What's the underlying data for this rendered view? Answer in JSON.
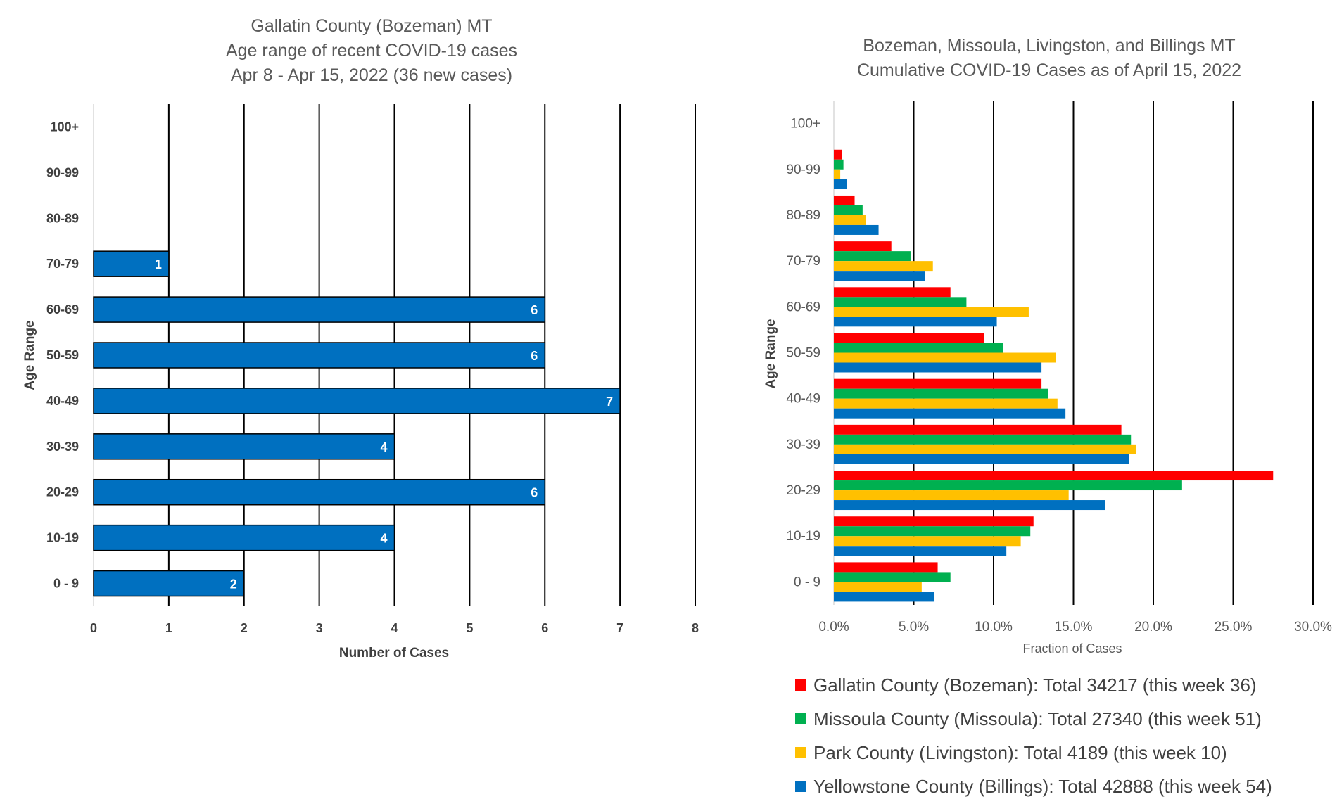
{
  "chart_data": [
    {
      "type": "bar",
      "orientation": "horizontal",
      "title": [
        "Gallatin County (Bozeman) MT",
        "Age range of recent COVID-19 cases",
        "Apr 8 - Apr 15, 2022 (36 new cases)"
      ],
      "xlabel": "Number of Cases",
      "ylabel": "Age Range",
      "categories": [
        "0 - 9",
        "10-19",
        "20-29",
        "30-39",
        "40-49",
        "50-59",
        "60-69",
        "70-79",
        "80-89",
        "90-99",
        "100+"
      ],
      "values": [
        2,
        4,
        6,
        4,
        7,
        6,
        6,
        1,
        0,
        0,
        0
      ],
      "data_labels": [
        "2",
        "4",
        "6",
        "4",
        "7",
        "6",
        "6",
        "1",
        "",
        "",
        ""
      ],
      "xlim": [
        0,
        8
      ],
      "xticks": [
        "0",
        "1",
        "2",
        "3",
        "4",
        "5",
        "6",
        "7",
        "8"
      ],
      "grid": "vertical",
      "bar_color": "#0070C0"
    },
    {
      "type": "bar",
      "orientation": "horizontal",
      "title": [
        "Bozeman, Missoula, Livingston, and Billings MT",
        "Cumulative COVID-19 Cases as of April 15, 2022"
      ],
      "xlabel": "Fraction of Cases",
      "ylabel": "Age Range",
      "categories": [
        "0 - 9",
        "10-19",
        "20-29",
        "30-39",
        "40-49",
        "50-59",
        "60-69",
        "70-79",
        "80-89",
        "90-99",
        "100+"
      ],
      "xlim": [
        0,
        30
      ],
      "xticks": [
        "0.0%",
        "5.0%",
        "10.0%",
        "15.0%",
        "20.0%",
        "25.0%",
        "30.0%"
      ],
      "grid": "vertical",
      "legend_position": "bottom",
      "series": [
        {
          "name": "Gallatin County (Bozeman): Total 34217 (this week 36)",
          "color": "#FF0000",
          "values": [
            6.5,
            12.5,
            27.5,
            18.0,
            13.0,
            9.4,
            7.3,
            3.6,
            1.3,
            0.5,
            0.0
          ]
        },
        {
          "name": "Missoula County (Missoula): Total 27340 (this week 51)",
          "color": "#00B050",
          "values": [
            7.3,
            12.3,
            21.8,
            18.6,
            13.4,
            10.6,
            8.3,
            4.8,
            1.8,
            0.6,
            0.0
          ]
        },
        {
          "name": "Park County (Livingston): Total 4189 (this week 10)",
          "color": "#FFC000",
          "values": [
            5.5,
            11.7,
            14.7,
            18.9,
            14.0,
            13.9,
            12.2,
            6.2,
            2.0,
            0.4,
            0.0
          ]
        },
        {
          "name": "Yellowstone County (Billings): Total 42888 (this week 54)",
          "color": "#0070C0",
          "values": [
            6.3,
            10.8,
            17.0,
            18.5,
            14.5,
            13.0,
            10.2,
            5.7,
            2.8,
            0.8,
            0.0
          ]
        }
      ]
    }
  ]
}
